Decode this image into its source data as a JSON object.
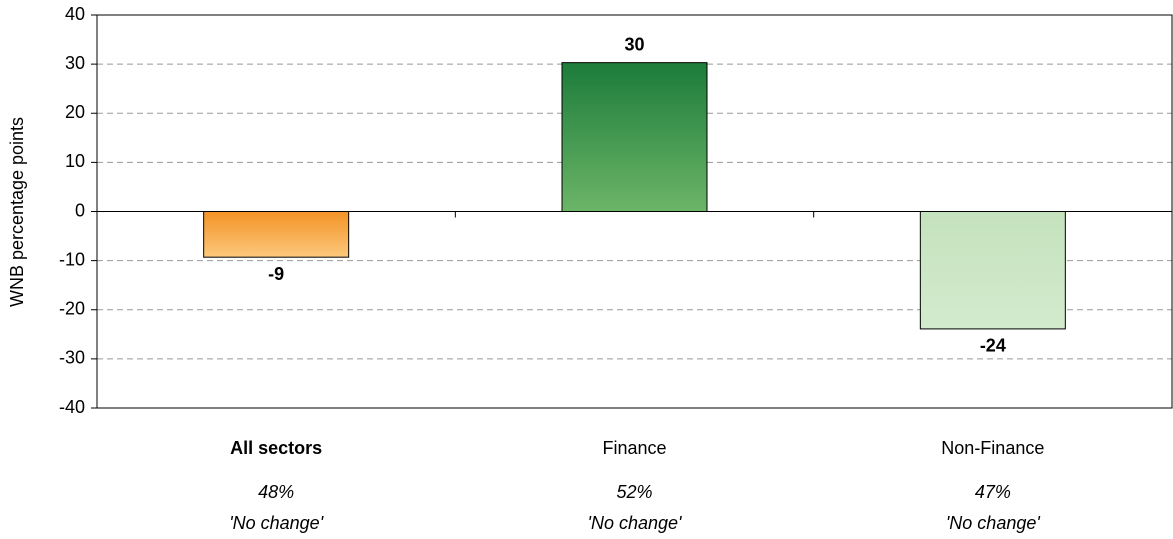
{
  "chart_data": {
    "type": "bar",
    "y_label": "WNB percentage points",
    "categories": [
      "All sectors",
      "Finance",
      "Non-Finance"
    ],
    "category_bold": [
      true,
      false,
      false
    ],
    "category_notes": [
      [
        "48%",
        "'No change'"
      ],
      [
        "52%",
        "'No change'"
      ],
      [
        "47%",
        "'No change'"
      ]
    ],
    "values": [
      -9.3,
      30.3,
      -23.9
    ],
    "value_labels": [
      "-9",
      "30",
      "-24"
    ],
    "gradients": [
      [
        "#f39326",
        "#fcc87c"
      ],
      [
        "#1c7c3a",
        "#6cb568"
      ],
      [
        "#c4e2bd",
        "#d3ebcd"
      ]
    ],
    "ylim": [
      -40,
      40
    ],
    "yticks": [
      -40,
      -30,
      -20,
      -10,
      0,
      10,
      20,
      30,
      40
    ],
    "grid": true
  }
}
